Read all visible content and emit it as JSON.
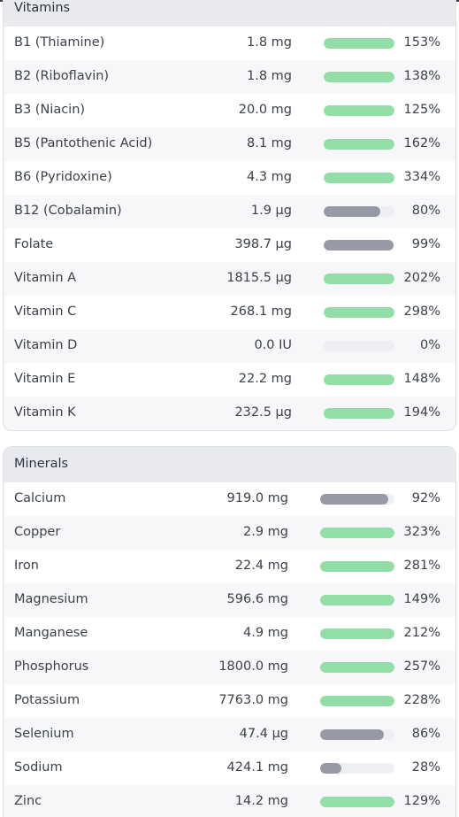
{
  "colors": {
    "bar_over": "#93dea6",
    "bar_under": "#979aa6",
    "bar_track": "#eeeff3",
    "header_bg": "#e9eaef"
  },
  "vitamins": {
    "title": "Vitamins",
    "rows": [
      {
        "name": "B1 (Thiamine)",
        "amount": "1.8 mg",
        "pct": "153%",
        "fill": 1.0
      },
      {
        "name": "B2 (Riboflavin)",
        "amount": "1.8 mg",
        "pct": "138%",
        "fill": 1.0
      },
      {
        "name": "B3 (Niacin)",
        "amount": "20.0 mg",
        "pct": "125%",
        "fill": 1.0
      },
      {
        "name": "B5 (Pantothenic Acid)",
        "amount": "8.1 mg",
        "pct": "162%",
        "fill": 1.0
      },
      {
        "name": "B6 (Pyridoxine)",
        "amount": "4.3 mg",
        "pct": "334%",
        "fill": 1.0
      },
      {
        "name": "B12 (Cobalamin)",
        "amount": "1.9 µg",
        "pct": "80%",
        "fill": 0.8
      },
      {
        "name": "Folate",
        "amount": "398.7 µg",
        "pct": "99%",
        "fill": 0.99
      },
      {
        "name": "Vitamin A",
        "amount": "1815.5 µg",
        "pct": "202%",
        "fill": 1.0
      },
      {
        "name": "Vitamin C",
        "amount": "268.1 mg",
        "pct": "298%",
        "fill": 1.0
      },
      {
        "name": "Vitamin D",
        "amount": "0.0 IU",
        "pct": "0%",
        "fill": 0.0
      },
      {
        "name": "Vitamin E",
        "amount": "22.2 mg",
        "pct": "148%",
        "fill": 1.0
      },
      {
        "name": "Vitamin K",
        "amount": "232.5 µg",
        "pct": "194%",
        "fill": 1.0
      }
    ]
  },
  "minerals": {
    "title": "Minerals",
    "rows": [
      {
        "name": "Calcium",
        "amount": "919.0 mg",
        "pct": "92%",
        "fill": 0.92
      },
      {
        "name": "Copper",
        "amount": "2.9 mg",
        "pct": "323%",
        "fill": 1.0
      },
      {
        "name": "Iron",
        "amount": "22.4 mg",
        "pct": "281%",
        "fill": 1.0
      },
      {
        "name": "Magnesium",
        "amount": "596.6 mg",
        "pct": "149%",
        "fill": 1.0
      },
      {
        "name": "Manganese",
        "amount": "4.9 mg",
        "pct": "212%",
        "fill": 1.0
      },
      {
        "name": "Phosphorus",
        "amount": "1800.0 mg",
        "pct": "257%",
        "fill": 1.0
      },
      {
        "name": "Potassium",
        "amount": "7763.0 mg",
        "pct": "228%",
        "fill": 1.0
      },
      {
        "name": "Selenium",
        "amount": "47.4 µg",
        "pct": "86%",
        "fill": 0.86
      },
      {
        "name": "Sodium",
        "amount": "424.1 mg",
        "pct": "28%",
        "fill": 0.28
      },
      {
        "name": "Zinc",
        "amount": "14.2 mg",
        "pct": "129%",
        "fill": 1.0
      }
    ]
  }
}
